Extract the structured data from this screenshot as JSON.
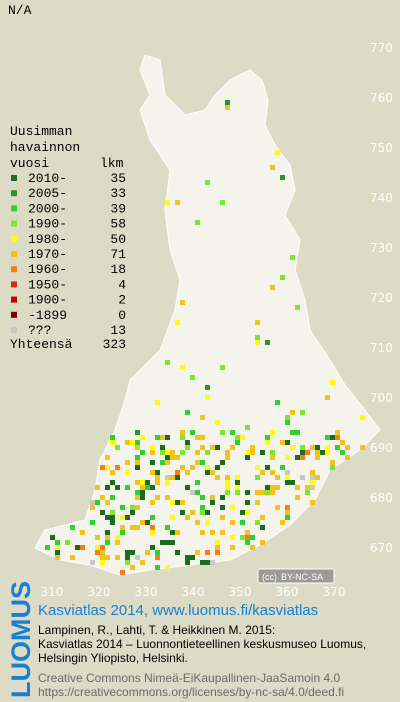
{
  "header": {
    "title": "N/A"
  },
  "legend": {
    "heading": [
      "Uusimman",
      "havainnon"
    ],
    "year_label": "vuosi",
    "count_label": "lkm",
    "items": [
      {
        "label": "2010-",
        "count": 35,
        "color": "#1d6b1d"
      },
      {
        "label": "2005-",
        "count": 33,
        "color": "#2c962c"
      },
      {
        "label": "2000-",
        "count": 39,
        "color": "#2fd02f"
      },
      {
        "label": "1990-",
        "count": 58,
        "color": "#7be830"
      },
      {
        "label": "1980-",
        "count": 50,
        "color": "#ffff00"
      },
      {
        "label": "1970-",
        "count": 71,
        "color": "#f2c21e"
      },
      {
        "label": "1960-",
        "count": 18,
        "color": "#f57f10"
      },
      {
        "label": "1950-",
        "count": 4,
        "color": "#e02a10"
      },
      {
        "label": "1900-",
        "count": 2,
        "color": "#c80000"
      },
      {
        "label": "-1899",
        "count": 0,
        "color": "#800000"
      },
      {
        "label": "???",
        "count": 13,
        "color": "#c8c8c8"
      }
    ],
    "total_label": "Yhteensä",
    "total": 323
  },
  "map": {
    "yticks": [
      770,
      760,
      750,
      740,
      730,
      720,
      710,
      700,
      690,
      680,
      670
    ],
    "xticks": [
      310,
      320,
      330,
      340,
      350,
      360,
      370
    ],
    "badge": "BY-NC-SA",
    "badge_cc": "(cc)"
  },
  "footer": {
    "brand": "LUOMUS",
    "title": "Kasviatlas 2014, www.luomus.fi/kasviatlas",
    "citation": [
      "Lampinen, R., Lahti, T. & Heikkinen M. 2015:",
      "Kasviatlas 2014 – Luonnontieteellinen keskusmuseo Luomus,",
      "Helsingin Yliopisto, Helsinki."
    ],
    "license": [
      "Creative Commons Nimeä-EiKaupallinen-JaaSamoin 4.0",
      "https://creativecommons.org/licenses/by-nc-sa/4.0/deed.fi"
    ]
  }
}
